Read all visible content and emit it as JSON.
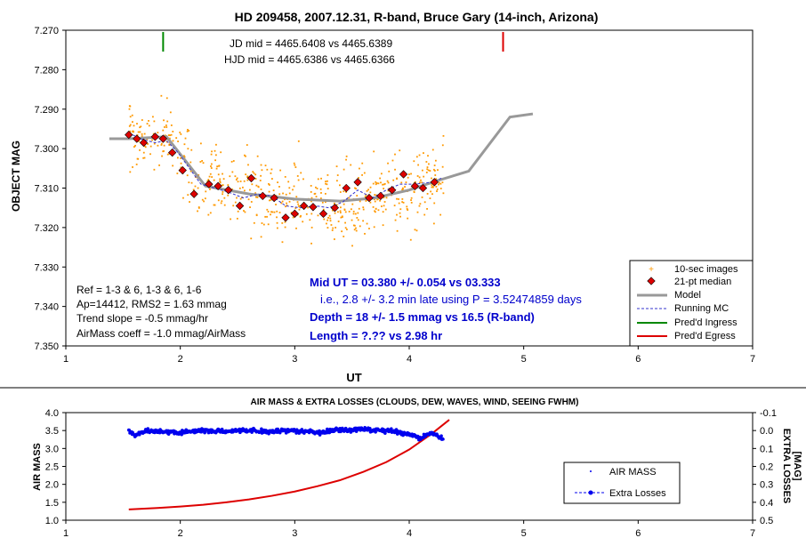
{
  "chart_data": [
    {
      "type": "scatter",
      "title": "HD 209458, 2007.12.31, R-band, Bruce Gary (14-inch, Arizona)",
      "xlabel": "UT",
      "ylabel": "OBJECT MAG",
      "xlim": [
        1,
        7
      ],
      "ylim": [
        7.27,
        7.35
      ],
      "y_inverted": true,
      "grid": false,
      "legend_position": "bottom-right",
      "xticks": [
        "1",
        "2",
        "3",
        "4",
        "5",
        "6",
        "7"
      ],
      "yticks": [
        "7.270",
        "7.280",
        "7.290",
        "7.300",
        "7.310",
        "7.320",
        "7.330",
        "7.340",
        "7.350"
      ],
      "annotations": {
        "jd_mid": "JD mid = 4465.6408 vs 4465.6389",
        "hjd_mid": "HJD mid = 4465.6386 vs 4465.6366",
        "ref": "Ref = 1-3 & 6, 1-3 & 6, 1-6",
        "ap": "Ap=14412, RMS2 = 1.63 mmag",
        "trend": "Trend slope = -0.5 mmag/hr",
        "airmass_coeff": "AirMass coeff = -1.0 mmag/AirMass",
        "mid_ut": "Mid UT = 03.380 +/- 0.054 vs 03.333",
        "late": "i.e., 2.8 +/- 3.2 min late using P = 3.52474859 days",
        "depth": "Depth = 18 +/- 1.5 mmag vs 16.5 (R-band)",
        "length": "Length = ?.?? vs 2.98 hr"
      },
      "series": [
        {
          "name": "10-sec images",
          "color": "#ff9900",
          "style": "dots",
          "description_points": "approx 600 points scattered around the model, std ~0.005 mag, UT 1.55 to 4.30"
        },
        {
          "name": "21-pt median",
          "color": "#dd0000",
          "x": [
            1.55,
            1.62,
            1.68,
            1.78,
            1.85,
            1.93,
            2.02,
            2.12,
            2.25,
            2.33,
            2.42,
            2.52,
            2.62,
            2.72,
            2.82,
            2.92,
            3.0,
            3.08,
            3.16,
            3.25,
            3.35,
            3.45,
            3.55,
            3.65,
            3.75,
            3.85,
            3.95,
            4.05,
            4.12,
            4.22
          ],
          "y": [
            7.2965,
            7.2975,
            7.2985,
            7.297,
            7.2975,
            7.301,
            7.3055,
            7.3115,
            7.309,
            7.3095,
            7.3105,
            7.3145,
            7.3075,
            7.312,
            7.3125,
            7.3175,
            7.3165,
            7.3145,
            7.3148,
            7.3165,
            7.315,
            7.31,
            7.3085,
            7.3125,
            7.312,
            7.3105,
            7.3065,
            7.3095,
            7.31,
            7.3085
          ]
        },
        {
          "name": "Model",
          "color": "#999999",
          "x": [
            1.38,
            1.55,
            1.88,
            2.22,
            2.6,
            3.0,
            3.4,
            3.7,
            4.0,
            4.26,
            4.52,
            4.88,
            5.08
          ],
          "y": [
            7.2975,
            7.2975,
            7.297,
            7.3095,
            7.3115,
            7.3128,
            7.3133,
            7.3125,
            7.3105,
            7.308,
            7.3057,
            7.292,
            7.2912
          ]
        },
        {
          "name": "Running MC",
          "color": "#3333cc",
          "style": "dashed",
          "x": [
            1.55,
            1.65,
            1.78,
            1.88,
            1.98,
            2.08,
            2.18,
            2.3,
            2.42,
            2.55,
            2.68,
            2.8,
            2.92,
            3.05,
            3.18,
            3.3,
            3.42,
            3.55,
            3.68,
            3.8,
            3.92,
            4.05,
            4.2,
            4.28
          ],
          "y": [
            7.296,
            7.2975,
            7.2985,
            7.298,
            7.301,
            7.305,
            7.309,
            7.31,
            7.311,
            7.3125,
            7.3115,
            7.312,
            7.3145,
            7.315,
            7.3145,
            7.315,
            7.3135,
            7.3105,
            7.3125,
            7.3105,
            7.309,
            7.309,
            7.3085,
            7.3075
          ]
        },
        {
          "name": "Pred'd Ingress",
          "color": "#008800",
          "x": [
            1.85
          ]
        },
        {
          "name": "Pred'd Egress",
          "color": "#dd0000",
          "x": [
            4.82
          ]
        }
      ]
    },
    {
      "type": "line",
      "title": "AIR MASS & EXTRA LOSSES (CLOUDS, DEW, WAVES, WIND, SEEING FWHM)",
      "xlabel": "",
      "ylabel": "AIR MASS",
      "y2label": "EXTRA LOSSES [MAG]",
      "xlim": [
        1,
        7
      ],
      "ylim": [
        1.0,
        4.0
      ],
      "y2lim": [
        -0.1,
        0.5
      ],
      "y2_inverted": true,
      "legend_position": "right",
      "xticks": [
        "1",
        "2",
        "3",
        "4",
        "5",
        "6",
        "7"
      ],
      "yticks": [
        "1.0",
        "1.5",
        "2.0",
        "2.5",
        "3.0",
        "3.5",
        "4.0"
      ],
      "y2ticks": [
        "-0.1",
        "0.0",
        "0.1",
        "0.2",
        "0.3",
        "0.4",
        "0.5"
      ],
      "series": [
        {
          "name": "AIR MASS",
          "color": "#dd0000",
          "x": [
            1.55,
            1.8,
            2.0,
            2.2,
            2.4,
            2.6,
            2.8,
            3.0,
            3.2,
            3.4,
            3.6,
            3.8,
            4.0,
            4.2,
            4.35
          ],
          "y": [
            1.3,
            1.34,
            1.38,
            1.43,
            1.5,
            1.58,
            1.68,
            1.8,
            1.95,
            2.12,
            2.35,
            2.62,
            2.97,
            3.42,
            3.8
          ]
        },
        {
          "name": "Extra Losses",
          "color": "#0000ee",
          "x": [
            1.55,
            1.6,
            1.7,
            1.8,
            2.0,
            2.2,
            2.4,
            2.6,
            2.8,
            3.0,
            3.2,
            3.4,
            3.6,
            3.8,
            4.0,
            4.1,
            4.2,
            4.3
          ],
          "y": [
            0.0,
            0.03,
            0.0,
            0.005,
            0.01,
            0.0,
            0.005,
            0.0,
            0.005,
            0.0,
            0.01,
            0.0,
            -0.005,
            0.0,
            0.02,
            0.04,
            0.01,
            0.05
          ]
        }
      ]
    }
  ]
}
